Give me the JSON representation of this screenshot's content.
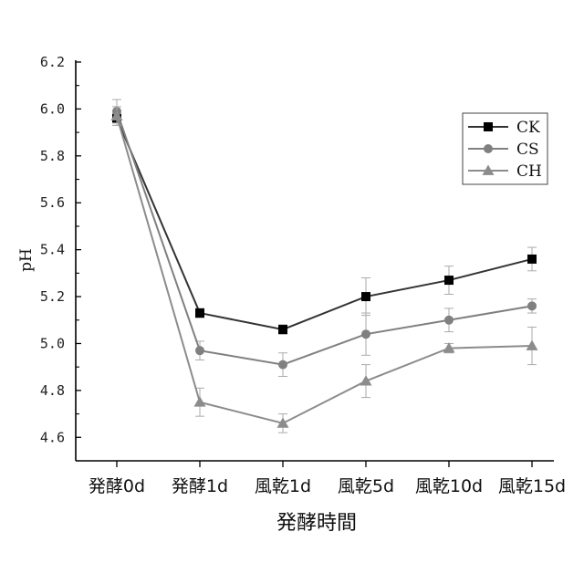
{
  "chart_data": {
    "type": "line",
    "title": "",
    "xlabel": "発酵時間",
    "ylabel": "pH",
    "categories": [
      "発酵0d",
      "発酵1d",
      "風乾1d",
      "風乾5d",
      "風乾10d",
      "風乾15d"
    ],
    "ylim": [
      4.5,
      6.2
    ],
    "yticks": [
      "4.6",
      "4.8",
      "5.0",
      "5.2",
      "5.4",
      "5.6",
      "5.8",
      "6.0",
      "6.2"
    ],
    "grid": false,
    "legend_position": "top-right",
    "series": [
      {
        "name": "CK",
        "color": "#333333",
        "marker": "square",
        "values": [
          5.96,
          5.13,
          5.06,
          5.2,
          5.27,
          5.36
        ],
        "errors": [
          0.03,
          0.02,
          0.02,
          0.08,
          0.06,
          0.05
        ]
      },
      {
        "name": "CS",
        "color": "#808080",
        "marker": "circle",
        "values": [
          5.99,
          4.97,
          4.91,
          5.04,
          5.1,
          5.16
        ],
        "errors": [
          0.05,
          0.04,
          0.05,
          0.09,
          0.05,
          0.03
        ]
      },
      {
        "name": "CH",
        "color": "#8c8c8c",
        "marker": "triangle",
        "values": [
          5.97,
          4.75,
          4.66,
          4.84,
          4.98,
          4.99
        ],
        "errors": [
          0.04,
          0.06,
          0.04,
          0.07,
          0.02,
          0.08
        ]
      }
    ]
  }
}
